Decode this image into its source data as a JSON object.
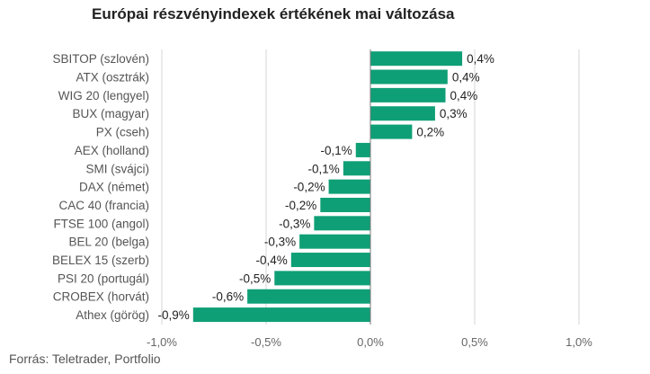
{
  "chart_data": {
    "type": "bar",
    "orientation": "horizontal",
    "title": "Európai részvényindexek értékének mai változása",
    "categories": [
      "SBITOP (szlovén)",
      "ATX (osztrák)",
      "WIG 20 (lengyel)",
      "BUX (magyar)",
      "PX (cseh)",
      "AEX (holland)",
      "SMI (svájci)",
      "DAX (német)",
      "CAC 40 (francia)",
      "FTSE 100 (angol)",
      "BEL 20 (belga)",
      "BELEX 15 (szerb)",
      "PSI 20 (portugál)",
      "CROBEX (horvát)",
      "Athex (görög)"
    ],
    "values": [
      0.44,
      0.37,
      0.36,
      0.31,
      0.2,
      -0.07,
      -0.13,
      -0.2,
      -0.24,
      -0.27,
      -0.34,
      -0.38,
      -0.46,
      -0.59,
      -0.85
    ],
    "value_labels": [
      "0,4%",
      "0,4%",
      "0,4%",
      "0,3%",
      "0,2%",
      "-0,1%",
      "-0,1%",
      "-0,2%",
      "-0,2%",
      "-0,3%",
      "-0,3%",
      "-0,4%",
      "-0,5%",
      "-0,6%",
      "-0,9%"
    ],
    "xlim": [
      -1.0,
      1.0
    ],
    "ticks": [
      -1.0,
      -0.5,
      0.0,
      0.5,
      1.0
    ],
    "tick_labels": [
      "-1,0%",
      "-0,5%",
      "0,0%",
      "0,5%",
      "1,0%"
    ],
    "bar_color": "#0f9f76",
    "grid": true
  },
  "source": "Forrás: Teletrader, Portfolio"
}
